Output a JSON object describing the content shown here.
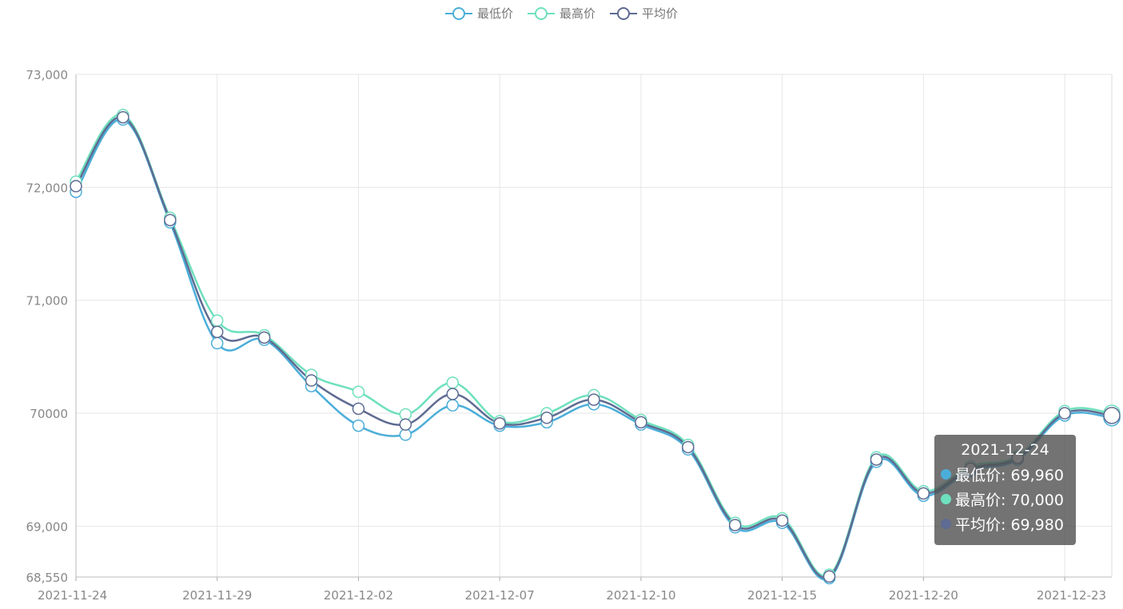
{
  "chart_data": {
    "type": "line",
    "legend_position": "top-center",
    "x": [
      "2021-11-24",
      "2021-11-25",
      "2021-11-26",
      "2021-11-29",
      "2021-11-30",
      "2021-12-01",
      "2021-12-02",
      "2021-12-03",
      "2021-12-06",
      "2021-12-07",
      "2021-12-08",
      "2021-12-09",
      "2021-12-10",
      "2021-12-13",
      "2021-12-14",
      "2021-12-15",
      "2021-12-16",
      "2021-12-17",
      "2021-12-20",
      "2021-12-21",
      "2021-12-22",
      "2021-12-23",
      "2021-12-24"
    ],
    "x_tick_labels": [
      "2021-11-24",
      "2021-11-29",
      "2021-12-02",
      "2021-12-07",
      "2021-12-10",
      "2021-12-15",
      "2021-12-20",
      "2021-12-23"
    ],
    "x_tick_indices": [
      0,
      3,
      6,
      9,
      12,
      15,
      18,
      21
    ],
    "y_ticks": [
      68550,
      69000,
      70000,
      71000,
      72000,
      73000
    ],
    "y_tick_labels": [
      "68,550",
      "69,000",
      "70000",
      "71,000",
      "72,000",
      "73,000"
    ],
    "ylim": [
      68550,
      73000
    ],
    "grid": true,
    "series": [
      {
        "name": "最低价",
        "color": "#4baed9",
        "values": [
          71960,
          72600,
          71690,
          70620,
          70650,
          70240,
          69890,
          69810,
          70070,
          69890,
          69920,
          70080,
          69900,
          69680,
          68990,
          69030,
          68540,
          69570,
          69270,
          69490,
          69590,
          69980,
          69960
        ]
      },
      {
        "name": "最高价",
        "color": "#6ee0bd",
        "values": [
          72050,
          72640,
          71730,
          70820,
          70690,
          70340,
          70190,
          69990,
          70270,
          69930,
          70000,
          70160,
          69940,
          69720,
          69030,
          69070,
          68570,
          69610,
          69310,
          69530,
          69620,
          70020,
          70000
        ]
      },
      {
        "name": "平均价",
        "color": "#5e6b92",
        "values": [
          72010,
          72620,
          71710,
          70720,
          70670,
          70290,
          70040,
          69900,
          70170,
          69910,
          69960,
          70120,
          69920,
          69700,
          69010,
          69050,
          68555,
          69590,
          69290,
          69510,
          69605,
          70000,
          69980
        ]
      }
    ],
    "tooltip": {
      "title": "2021-12-24",
      "rows": [
        {
          "label": "最低价: 69,960",
          "color": "#4baed9"
        },
        {
          "label": "最高价: 70,000",
          "color": "#6ee0bd"
        },
        {
          "label": "平均价: 69,980",
          "color": "#5e6b92"
        }
      ]
    }
  }
}
